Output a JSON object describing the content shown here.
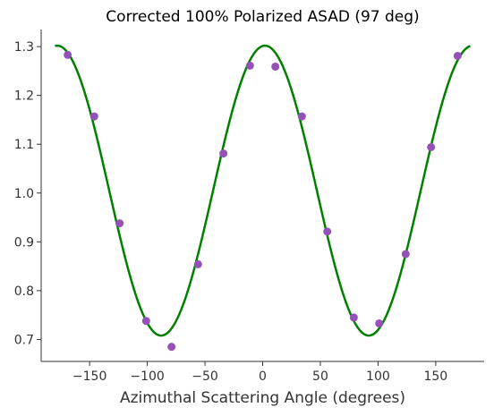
{
  "chart_data": {
    "type": "scatter",
    "title": "Corrected 100% Polarized ASAD (97 deg)",
    "xlabel": "Azimuthal Scattering Angle (degrees)",
    "ylabel": "",
    "xlim": [
      -192,
      192
    ],
    "ylim": [
      0.655,
      1.335
    ],
    "xticks": [
      -150,
      -100,
      -50,
      0,
      50,
      100,
      150
    ],
    "xtick_labels": [
      "−150",
      "−100",
      "−50",
      "0",
      "50",
      "100",
      "150"
    ],
    "yticks": [
      0.7,
      0.8,
      0.9,
      1.0,
      1.1,
      1.2,
      1.3
    ],
    "ytick_labels": [
      "0.7",
      "0.8",
      "0.9",
      "1.0",
      "1.1",
      "1.2",
      "1.3"
    ],
    "grid": false,
    "series": [
      {
        "kind": "points",
        "color": "#9452b8",
        "x": [
          -169,
          -146,
          -124,
          -101,
          -79,
          -56,
          -34,
          -11,
          11,
          34,
          56,
          79,
          101,
          124,
          146,
          169
        ],
        "y": [
          1.283,
          1.157,
          0.938,
          0.738,
          0.685,
          0.854,
          1.081,
          1.261,
          1.259,
          1.157,
          0.921,
          0.745,
          0.733,
          0.875,
          1.094,
          1.281
        ]
      },
      {
        "kind": "fit-curve",
        "color": "#008000",
        "x_range": [
          -180,
          180
        ],
        "offset": 1.005,
        "amplitude": 0.297,
        "phase_deg": 2
      }
    ]
  }
}
